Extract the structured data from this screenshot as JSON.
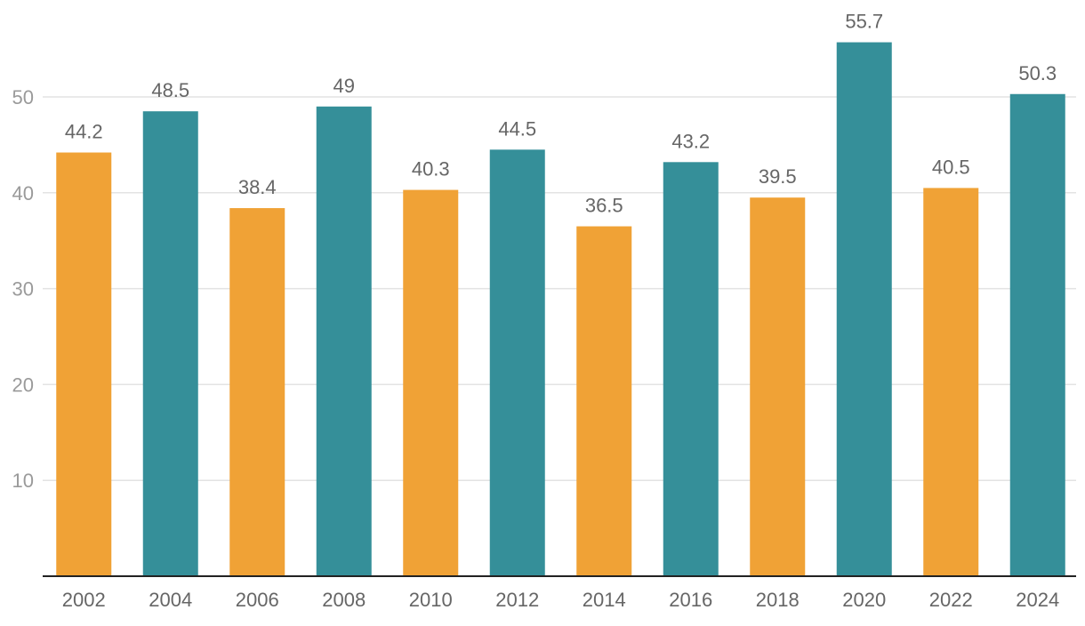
{
  "chart_data": {
    "type": "bar",
    "title": "",
    "xlabel": "",
    "ylabel": "",
    "categories": [
      "2002",
      "2004",
      "2006",
      "2008",
      "2010",
      "2012",
      "2014",
      "2016",
      "2018",
      "2020",
      "2022",
      "2024"
    ],
    "values": [
      44.2,
      48.5,
      38.4,
      49,
      40.3,
      44.5,
      36.5,
      43.2,
      39.5,
      55.7,
      40.5,
      50.3
    ],
    "value_labels": [
      "44.2",
      "48.5",
      "38.4",
      "49",
      "40.3",
      "44.5",
      "36.5",
      "43.2",
      "39.5",
      "55.7",
      "40.5",
      "50.3"
    ],
    "bar_colors": [
      "#f0a236",
      "#358f99",
      "#f0a236",
      "#358f99",
      "#f0a236",
      "#358f99",
      "#f0a236",
      "#358f99",
      "#f0a236",
      "#358f99",
      "#f0a236",
      "#358f99"
    ],
    "ylim": [
      0,
      60
    ],
    "yticks": [
      10,
      20,
      30,
      40,
      50
    ],
    "grid": true,
    "legend": "none"
  }
}
